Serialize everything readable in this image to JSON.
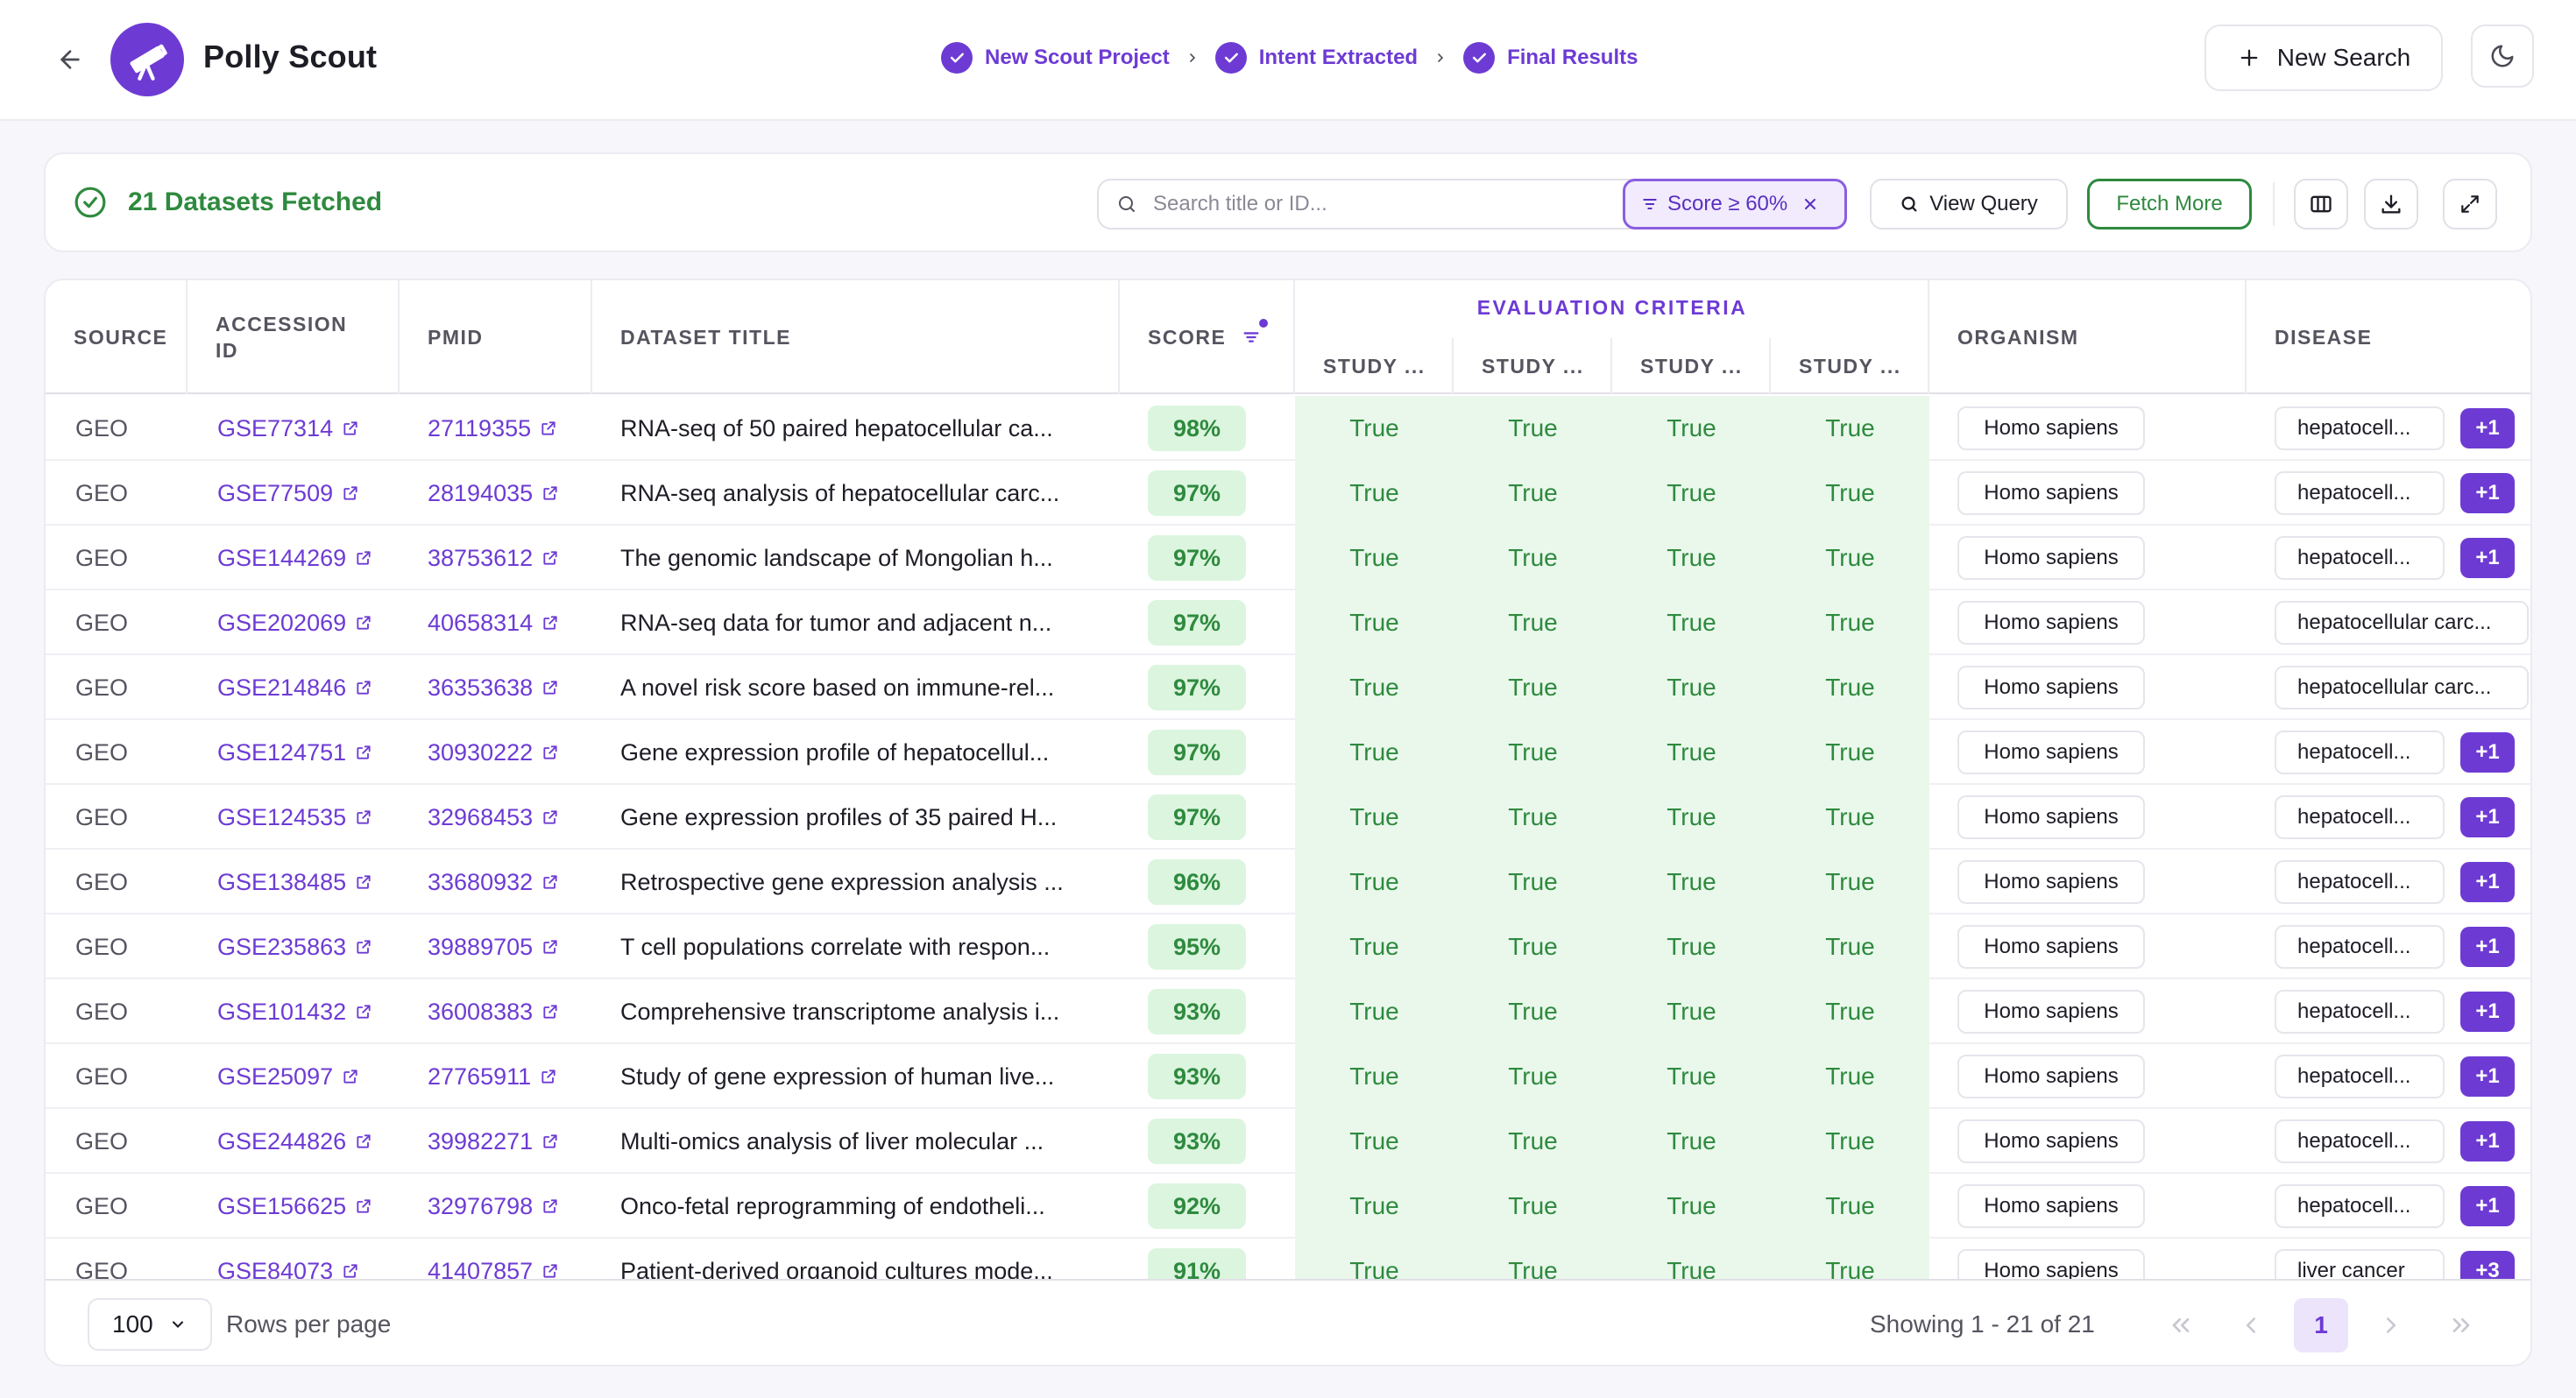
{
  "header": {
    "app_title": "Polly Scout",
    "steps": [
      {
        "label": "New Scout Project"
      },
      {
        "label": "Intent Extracted"
      },
      {
        "label": "Final Results"
      }
    ],
    "new_search_label": "New Search"
  },
  "toolbar": {
    "fetched_label": "21 Datasets Fetched",
    "search_placeholder": "Search title or ID...",
    "filter_chip": "Score ≥ 60%",
    "view_query_label": "View Query",
    "fetch_more_label": "Fetch More"
  },
  "table": {
    "columns": {
      "source": "SOURCE",
      "accession_line1": "ACCESSION",
      "accession_line2": "ID",
      "pmid": "PMID",
      "title": "DATASET TITLE",
      "score": "SCORE",
      "eval_group": "EVALUATION CRITERIA",
      "eval_sub": [
        "STUDY ...",
        "STUDY ...",
        "STUDY ...",
        "STUDY ..."
      ],
      "organism": "ORGANISM",
      "disease": "DISEASE"
    },
    "rows": [
      {
        "source": "GEO",
        "accession": "GSE77314",
        "pmid": "27119355",
        "title": "RNA-seq of 50 paired hepatocellular ca...",
        "score": "98%",
        "eval": [
          "True",
          "True",
          "True",
          "True"
        ],
        "organism": "Homo sapiens",
        "disease": "hepatocell...",
        "extra": "+1"
      },
      {
        "source": "GEO",
        "accession": "GSE77509",
        "pmid": "28194035",
        "title": "RNA-seq analysis of hepatocellular carc...",
        "score": "97%",
        "eval": [
          "True",
          "True",
          "True",
          "True"
        ],
        "organism": "Homo sapiens",
        "disease": "hepatocell...",
        "extra": "+1"
      },
      {
        "source": "GEO",
        "accession": "GSE144269",
        "pmid": "38753612",
        "title": "The genomic landscape of Mongolian h...",
        "score": "97%",
        "eval": [
          "True",
          "True",
          "True",
          "True"
        ],
        "organism": "Homo sapiens",
        "disease": "hepatocell...",
        "extra": "+1"
      },
      {
        "source": "GEO",
        "accession": "GSE202069",
        "pmid": "40658314",
        "title": "RNA-seq data for tumor and adjacent n...",
        "score": "97%",
        "eval": [
          "True",
          "True",
          "True",
          "True"
        ],
        "organism": "Homo sapiens",
        "disease": "hepatocellular carc...",
        "extra": ""
      },
      {
        "source": "GEO",
        "accession": "GSE214846",
        "pmid": "36353638",
        "title": "A novel risk score based on immune-rel...",
        "score": "97%",
        "eval": [
          "True",
          "True",
          "True",
          "True"
        ],
        "organism": "Homo sapiens",
        "disease": "hepatocellular carc...",
        "extra": ""
      },
      {
        "source": "GEO",
        "accession": "GSE124751",
        "pmid": "30930222",
        "title": "Gene expression profile of hepatocellul...",
        "score": "97%",
        "eval": [
          "True",
          "True",
          "True",
          "True"
        ],
        "organism": "Homo sapiens",
        "disease": "hepatocell...",
        "extra": "+1"
      },
      {
        "source": "GEO",
        "accession": "GSE124535",
        "pmid": "32968453",
        "title": "Gene expression profiles of 35 paired H...",
        "score": "97%",
        "eval": [
          "True",
          "True",
          "True",
          "True"
        ],
        "organism": "Homo sapiens",
        "disease": "hepatocell...",
        "extra": "+1"
      },
      {
        "source": "GEO",
        "accession": "GSE138485",
        "pmid": "33680932",
        "title": "Retrospective gene expression analysis ...",
        "score": "96%",
        "eval": [
          "True",
          "True",
          "True",
          "True"
        ],
        "organism": "Homo sapiens",
        "disease": "hepatocell...",
        "extra": "+1"
      },
      {
        "source": "GEO",
        "accession": "GSE235863",
        "pmid": "39889705",
        "title": "T cell populations correlate with respon...",
        "score": "95%",
        "eval": [
          "True",
          "True",
          "True",
          "True"
        ],
        "organism": "Homo sapiens",
        "disease": "hepatocell...",
        "extra": "+1"
      },
      {
        "source": "GEO",
        "accession": "GSE101432",
        "pmid": "36008383",
        "title": "Comprehensive transcriptome analysis i...",
        "score": "93%",
        "eval": [
          "True",
          "True",
          "True",
          "True"
        ],
        "organism": "Homo sapiens",
        "disease": "hepatocell...",
        "extra": "+1"
      },
      {
        "source": "GEO",
        "accession": "GSE25097",
        "pmid": "27765911",
        "title": "Study of gene expression of human live...",
        "score": "93%",
        "eval": [
          "True",
          "True",
          "True",
          "True"
        ],
        "organism": "Homo sapiens",
        "disease": "hepatocell...",
        "extra": "+1"
      },
      {
        "source": "GEO",
        "accession": "GSE244826",
        "pmid": "39982271",
        "title": "Multi-omics analysis of liver molecular ...",
        "score": "93%",
        "eval": [
          "True",
          "True",
          "True",
          "True"
        ],
        "organism": "Homo sapiens",
        "disease": "hepatocell...",
        "extra": "+1"
      },
      {
        "source": "GEO",
        "accession": "GSE156625",
        "pmid": "32976798",
        "title": "Onco-fetal reprogramming of endotheli...",
        "score": "92%",
        "eval": [
          "True",
          "True",
          "True",
          "True"
        ],
        "organism": "Homo sapiens",
        "disease": "hepatocell...",
        "extra": "+1"
      },
      {
        "source": "GEO",
        "accession": "GSE84073",
        "pmid": "41407857",
        "title": "Patient-derived organoid cultures mode...",
        "score": "91%",
        "eval": [
          "True",
          "True",
          "True",
          "True"
        ],
        "organism": "Homo sapiens",
        "disease": "liver cancer",
        "extra": "+3"
      }
    ]
  },
  "footer": {
    "rows_per_page_value": "100",
    "rows_per_page_label": "Rows per page",
    "showing": "Showing 1 - 21 of 21",
    "current_page": "1"
  },
  "colors": {
    "brand": "#6d3bd4",
    "success": "#2e8a3e",
    "score_bg": "#dcf5df",
    "eval_bg": "#eaf8ec"
  },
  "icons": [
    "arrow-left-icon",
    "telescope-icon",
    "check-circle-icon",
    "chevron-right-icon",
    "plus-icon",
    "moon-icon",
    "search-icon",
    "filter-icon",
    "close-icon",
    "columns-icon",
    "download-icon",
    "expand-icon",
    "external-link-icon",
    "chevron-down-icon",
    "chevrons-left-icon",
    "chevrons-right-icon"
  ]
}
